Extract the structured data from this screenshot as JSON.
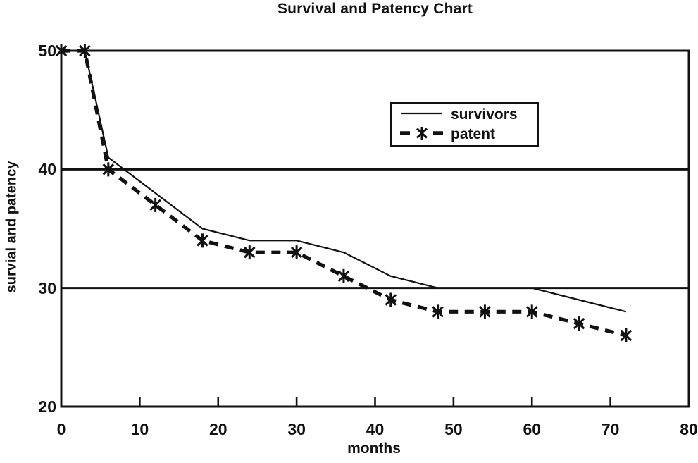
{
  "title": "Survival and Patency Chart",
  "colors": {
    "ink": "#111111",
    "background": "#ffffff"
  },
  "legend": {
    "items": [
      {
        "label": "survivors",
        "sample": "thin-solid-line"
      },
      {
        "label": "patent",
        "sample": "thick-dashed-line-with-asterisk"
      }
    ]
  },
  "chart_data": {
    "type": "line",
    "title": "Survival and Patency Chart",
    "xlabel": "months",
    "ylabel": "survial and patency",
    "xlim": [
      0,
      80
    ],
    "ylim": [
      20,
      50
    ],
    "xticks": [
      0,
      10,
      20,
      30,
      40,
      50,
      60,
      70,
      80
    ],
    "yticks": [
      20,
      30,
      40,
      50
    ],
    "gridlines_y": [
      30,
      40,
      50
    ],
    "grid": "horizontal-only",
    "legend_position": "inside-upper-middle",
    "series": [
      {
        "name": "survivors",
        "style": "solid",
        "line_width": "thin",
        "marker": "none",
        "x": [
          0,
          3,
          6,
          12,
          18,
          24,
          30,
          36,
          42,
          48,
          54,
          60,
          66,
          72
        ],
        "y": [
          50,
          50,
          41,
          38,
          35,
          34,
          34,
          33,
          31,
          30,
          30,
          30,
          29,
          28
        ]
      },
      {
        "name": "patent",
        "style": "dashed",
        "line_width": "thick",
        "marker": "asterisk",
        "x": [
          0,
          3,
          6,
          12,
          18,
          24,
          30,
          36,
          42,
          48,
          54,
          60,
          66,
          72
        ],
        "y": [
          50,
          50,
          40,
          37,
          34,
          33,
          33,
          31,
          29,
          28,
          28,
          28,
          27,
          26
        ]
      }
    ]
  }
}
